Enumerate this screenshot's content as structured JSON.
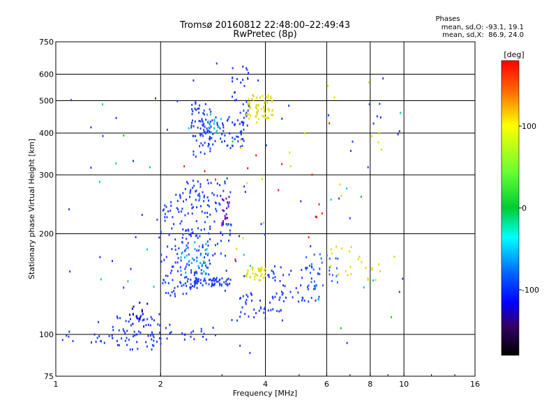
{
  "chart_data": {
    "type": "scatter",
    "title": "Tromsø 20160812 22:48:00–22:49:43",
    "subtitle": "RwPretec (8p)",
    "stats": {
      "heading": "Phases",
      "line_o": "mean, sd,O: -93.1, 19.1",
      "line_x": "mean, sd,X:  86.9, 24.0"
    },
    "xlabel": "Frequency [MHz]",
    "ylabel": "Stationary phase Virtual Height [km]",
    "x_scale": "log",
    "y_scale": "log",
    "xlim": [
      1,
      16
    ],
    "ylim": [
      75,
      750
    ],
    "x_ticks": [
      1,
      2,
      4,
      6,
      8,
      10,
      16
    ],
    "x_grid": [
      2,
      4,
      6,
      8,
      10
    ],
    "y_ticks": [
      75,
      100,
      200,
      300,
      400,
      500,
      600,
      750
    ],
    "grid": true,
    "colorbar": {
      "label": "[deg]",
      "range": [
        -180,
        180
      ],
      "ticks": [
        100,
        0,
        -100
      ]
    },
    "clusters": [
      {
        "x": [
          1.0,
          1.5
        ],
        "y": [
          93,
          100
        ],
        "n": 14,
        "color": "#1a3cff"
      },
      {
        "x": [
          1.45,
          2.15
        ],
        "y": [
          90,
          115
        ],
        "n": 75,
        "color": "#1a3cff"
      },
      {
        "x": [
          1.6,
          1.85
        ],
        "y": [
          105,
          125
        ],
        "n": 16,
        "color": "#0000cc"
      },
      {
        "x": [
          2.0,
          2.2
        ],
        "y": [
          135,
          250
        ],
        "n": 30,
        "color": "#1a3cff"
      },
      {
        "x": [
          2.05,
          2.55
        ],
        "y": [
          130,
          150
        ],
        "n": 35,
        "color": "#1a3cff"
      },
      {
        "x": [
          2.2,
          2.8
        ],
        "y": [
          150,
          290
        ],
        "n": 140,
        "color": "#1a3cff"
      },
      {
        "x": [
          2.25,
          2.75
        ],
        "y": [
          150,
          190
        ],
        "n": 30,
        "color": "#00aaff"
      },
      {
        "x": [
          2.5,
          3.2
        ],
        "y": [
          140,
          148
        ],
        "n": 60,
        "color": "#1a3cff"
      },
      {
        "x": [
          2.8,
          3.2
        ],
        "y": [
          170,
          300
        ],
        "n": 35,
        "color": "#1a3cff"
      },
      {
        "x": [
          3.0,
          3.15
        ],
        "y": [
          210,
          260
        ],
        "n": 22,
        "color": "#6600cc"
      },
      {
        "x": [
          2.45,
          2.8
        ],
        "y": [
          340,
          500
        ],
        "n": 70,
        "color": "#1a3cff"
      },
      {
        "x": [
          2.7,
          3.5
        ],
        "y": [
          360,
          450
        ],
        "n": 55,
        "color": "#1a3cff"
      },
      {
        "x": [
          2.7,
          3.0
        ],
        "y": [
          400,
          460
        ],
        "n": 15,
        "color": "#00bbcc"
      },
      {
        "x": [
          3.2,
          3.6
        ],
        "y": [
          420,
          640
        ],
        "n": 35,
        "color": "#1a3cff"
      },
      {
        "x": [
          3.5,
          4.2
        ],
        "y": [
          440,
          520
        ],
        "n": 60,
        "color": "#dddd00"
      },
      {
        "x": [
          3.5,
          4.0
        ],
        "y": [
          145,
          160
        ],
        "n": 35,
        "color": "#dddd00"
      },
      {
        "x": [
          3.2,
          4.5
        ],
        "y": [
          110,
          135
        ],
        "n": 40,
        "color": "#1a3cff"
      },
      {
        "x": [
          4.0,
          5.8
        ],
        "y": [
          125,
          160
        ],
        "n": 55,
        "color": "#1a3cff"
      },
      {
        "x": [
          5.2,
          6.5
        ],
        "y": [
          140,
          175
        ],
        "n": 30,
        "color": "#2266ff"
      },
      {
        "x": [
          6.0,
          7.5
        ],
        "y": [
          150,
          185
        ],
        "n": 14,
        "color": "#dddd00"
      },
      {
        "x": [
          7.5,
          8.6
        ],
        "y": [
          145,
          165
        ],
        "n": 10,
        "color": "#dddd00"
      },
      {
        "x": [
          2.3,
          3.0
        ],
        "y": [
          95,
          105
        ],
        "n": 14,
        "color": "#1a3cff"
      },
      {
        "x": [
          1.05,
          10.2
        ],
        "y": [
          85,
          650
        ],
        "n": 70,
        "color": "#1a3cff"
      },
      {
        "x": [
          3.3,
          9.5
        ],
        "y": [
          150,
          600
        ],
        "n": 25,
        "color": "#dddd00"
      },
      {
        "x": [
          2.3,
          7.5
        ],
        "y": [
          150,
          500
        ],
        "n": 14,
        "color": "#ff2200"
      },
      {
        "x": [
          1.05,
          10.2
        ],
        "y": [
          120,
          600
        ],
        "n": 20,
        "color": "#00cccc"
      },
      {
        "x": [
          1.3,
          10
        ],
        "y": [
          100,
          500
        ],
        "n": 6,
        "color": "#22cc22"
      }
    ]
  }
}
